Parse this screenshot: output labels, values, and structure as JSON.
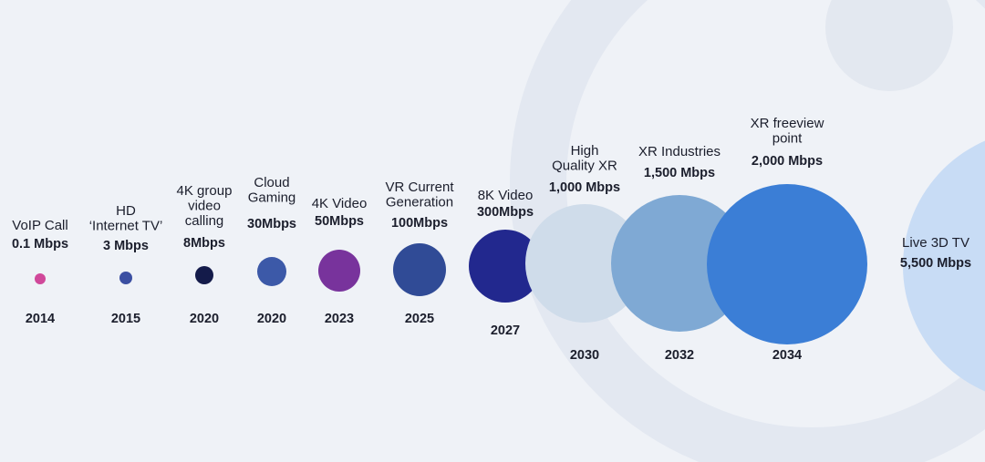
{
  "chart_data": {
    "type": "bubble",
    "points": [
      {
        "name": [
          "VoIP Call"
        ],
        "value": "0.1 Mbps",
        "mbps": 0.1,
        "year": "2014",
        "color": "#d0489a"
      },
      {
        "name": [
          "HD",
          "‘Internet TV’"
        ],
        "value": "3 Mbps",
        "mbps": 3,
        "year": "2015",
        "color": "#3b4fa2"
      },
      {
        "name": [
          "4K group",
          "video",
          "calling"
        ],
        "value": "8Mbps",
        "mbps": 8,
        "year": "2020",
        "color": "#141b4a"
      },
      {
        "name": [
          "Cloud",
          "Gaming"
        ],
        "value": "30Mbps",
        "mbps": 30,
        "year": "2020",
        "color": "#3c59a8"
      },
      {
        "name": [
          "4K Video"
        ],
        "value": "50Mbps",
        "mbps": 50,
        "year": "2023",
        "color": "#78339c"
      },
      {
        "name": [
          "VR Current",
          "Generation"
        ],
        "value": "100Mbps",
        "mbps": 100,
        "year": "2025",
        "color": "#304b96"
      },
      {
        "name": [
          "8K Video"
        ],
        "value": "300Mbps",
        "mbps": 300,
        "year": "2027",
        "color": "#22288e"
      },
      {
        "name": [
          "High",
          "Quality XR"
        ],
        "value": "1,000 Mbps",
        "mbps": 1000,
        "year": "2030",
        "color": "#cfdcea"
      },
      {
        "name": [
          "XR Industries"
        ],
        "value": "1,500 Mbps",
        "mbps": 1500,
        "year": "2032",
        "color": "#7fa9d4"
      },
      {
        "name": [
          "XR freeview",
          "point"
        ],
        "value": "2,000 Mbps",
        "mbps": 2000,
        "year": "2034",
        "color": "#3b7ed6"
      },
      {
        "name": [
          "Live 3D TV"
        ],
        "value": "5,500 Mbps",
        "mbps": 5500,
        "year": "",
        "color": "#c8dcf5"
      }
    ]
  }
}
